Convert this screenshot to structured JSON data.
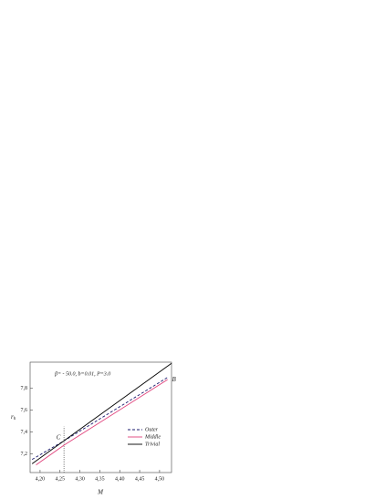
{
  "chart_data": {
    "type": "line",
    "annotation": "β= - 50.0,  b=0.01,  P=3.0",
    "x_label": "M",
    "y_label": {
      "text": "r",
      "sub": "h"
    },
    "xlim": [
      4.175,
      4.53
    ],
    "ylim": [
      7.03,
      8.04
    ],
    "xticks": [
      {
        "value": 4.2,
        "label": "4,20"
      },
      {
        "value": 4.25,
        "label": "4,25"
      },
      {
        "value": 4.3,
        "label": "4,30"
      },
      {
        "value": 4.35,
        "label": "4,35"
      },
      {
        "value": 4.4,
        "label": "4,40"
      },
      {
        "value": 4.45,
        "label": "4,45"
      },
      {
        "value": 4.5,
        "label": "4,50"
      }
    ],
    "yticks": [
      {
        "value": 7.2,
        "label": "7,2"
      },
      {
        "value": 7.4,
        "label": "7,4"
      },
      {
        "value": 7.6,
        "label": "7,6"
      },
      {
        "value": 7.8,
        "label": "7,8"
      }
    ],
    "series": [
      {
        "name": "Outer",
        "color": "#1a1a6e",
        "dash": true,
        "x": [
          4.18,
          4.26,
          4.52
        ],
        "values": [
          7.15,
          7.32,
          7.9
        ]
      },
      {
        "name": "Middle",
        "color": "#e0407a",
        "dash": false,
        "x": [
          4.19,
          4.26,
          4.52
        ],
        "values": [
          7.1,
          7.28,
          7.88
        ]
      },
      {
        "name": "Trivial",
        "color": "#000000",
        "dash": false,
        "x": [
          4.18,
          4.53
        ],
        "values": [
          7.11,
          8.03
        ]
      }
    ],
    "points": [
      {
        "label": "C",
        "x": 4.26,
        "y": 7.3
      },
      {
        "label": "B",
        "x": 4.52,
        "y": 7.88
      }
    ],
    "vline": {
      "x": 4.26,
      "top": 7.45
    }
  }
}
